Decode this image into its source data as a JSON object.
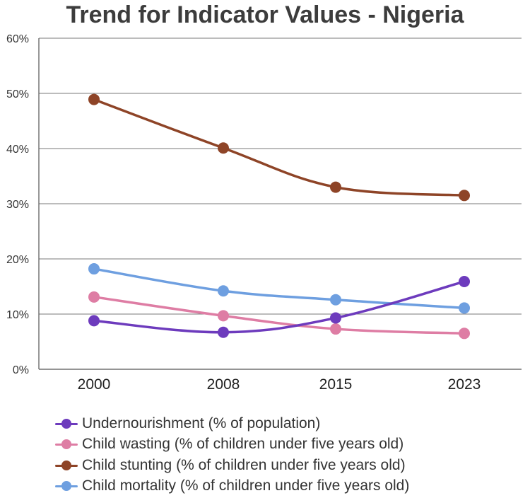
{
  "chart_data": {
    "type": "line",
    "title": "Trend for Indicator Values - Nigeria",
    "categories": [
      "2000",
      "2008",
      "2015",
      "2023"
    ],
    "ylim": [
      0,
      60
    ],
    "yticks": [
      "0%",
      "10%",
      "20%",
      "30%",
      "40%",
      "50%",
      "60%"
    ],
    "grid": true,
    "legend_position": "bottom",
    "series": [
      {
        "name": "Undernourishment (% of population)",
        "color": "#6d3bbd",
        "values": [
          8.8,
          6.7,
          9.3,
          15.9
        ]
      },
      {
        "name": "Child wasting (% of children under five years old)",
        "color": "#de7da4",
        "values": [
          13.1,
          9.7,
          7.3,
          6.5
        ]
      },
      {
        "name": "Child stunting (% of children under five years old)",
        "color": "#8e4427",
        "values": [
          48.9,
          40.1,
          33.0,
          31.5
        ]
      },
      {
        "name": "Child mortality (% of children under five years old)",
        "color": "#6e9fe0",
        "values": [
          18.2,
          14.2,
          12.6,
          11.1
        ]
      }
    ]
  }
}
